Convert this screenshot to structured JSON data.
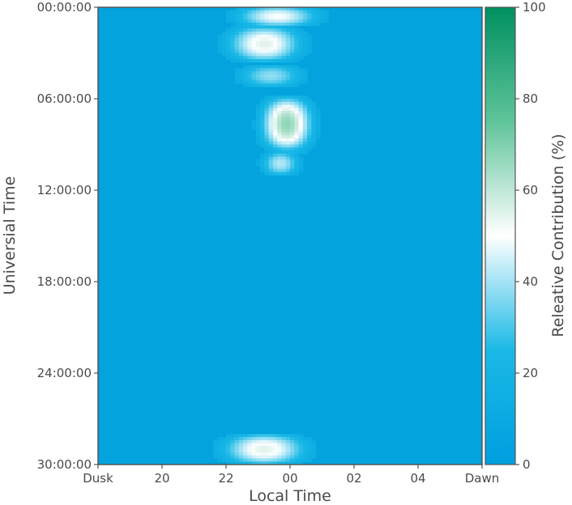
{
  "chart_data": {
    "type": "heatmap",
    "xlabel": "Local Time",
    "ylabel": "Universial Time",
    "x_tick_labels": [
      "Dusk",
      "20",
      "22",
      "00",
      "02",
      "04",
      "Dawn"
    ],
    "x_tick_values_hours": [
      18,
      20,
      22,
      24,
      26,
      28,
      30
    ],
    "y_tick_labels": [
      "00:00:00",
      "06:00:00",
      "12:00:00",
      "18:00:00",
      "24:00:00",
      "30:00:00"
    ],
    "y_tick_values_hours": [
      0,
      6,
      12,
      18,
      24,
      30
    ],
    "xlim_hours": [
      18,
      30
    ],
    "ylim_hours": [
      0,
      30
    ],
    "y_inverted": true,
    "background_value": 5,
    "colorbar": {
      "label": "Releative Contribution (%)",
      "range": [
        0,
        100
      ],
      "tick_labels": [
        "0",
        "20",
        "40",
        "60",
        "80",
        "100"
      ],
      "tick_values": [
        0,
        20,
        40,
        60,
        80,
        100
      ],
      "colors": {
        "0": "#009fdf",
        "25": "#1ab9e6",
        "50": "#ffffff",
        "75": "#5fc49a",
        "100": "#009060"
      }
    },
    "hotspots": [
      {
        "ut_start": 0.0,
        "ut_end": 1.2,
        "lt_center": 23.6,
        "lt_halfwidth": 1.7,
        "peak_value": 50
      },
      {
        "ut_start": 1.2,
        "ut_end": 3.6,
        "lt_center": 23.2,
        "lt_halfwidth": 1.5,
        "peak_value": 55
      },
      {
        "ut_start": 3.8,
        "ut_end": 5.2,
        "lt_center": 23.4,
        "lt_halfwidth": 1.4,
        "peak_value": 38
      },
      {
        "ut_start": 5.8,
        "ut_end": 9.5,
        "lt_center": 23.9,
        "lt_halfwidth": 1.0,
        "peak_value": 68
      },
      {
        "ut_start": 9.5,
        "ut_end": 11.0,
        "lt_center": 23.7,
        "lt_halfwidth": 0.8,
        "peak_value": 42
      },
      {
        "ut_start": 28.0,
        "ut_end": 30.0,
        "lt_center": 23.2,
        "lt_halfwidth": 1.7,
        "peak_value": 55
      }
    ]
  }
}
